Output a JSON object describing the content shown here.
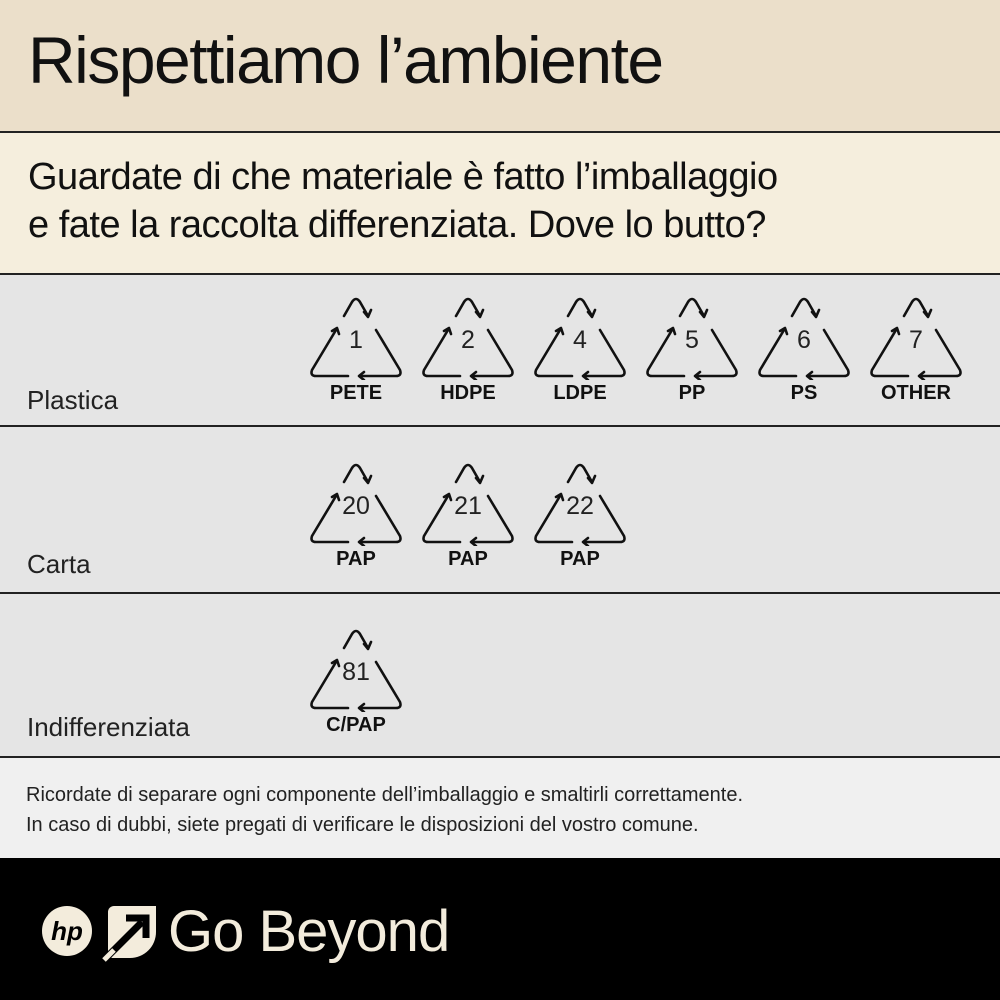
{
  "title": "Rispettiamo l’ambiente",
  "subtitle": {
    "line1": "Guardate di che materiale è fatto l’imballaggio",
    "line2": "e fate la raccolta differenziata.  Dove lo butto?"
  },
  "categories": [
    {
      "label": "Plastica",
      "symbols": [
        {
          "number": "1",
          "code": "PETE"
        },
        {
          "number": "2",
          "code": "HDPE"
        },
        {
          "number": "4",
          "code": "LDPE"
        },
        {
          "number": "5",
          "code": "PP"
        },
        {
          "number": "6",
          "code": "PS"
        },
        {
          "number": "7",
          "code": "OTHER"
        }
      ]
    },
    {
      "label": "Carta",
      "symbols": [
        {
          "number": "20",
          "code": "PAP"
        },
        {
          "number": "21",
          "code": "PAP"
        },
        {
          "number": "22",
          "code": "PAP"
        }
      ]
    },
    {
      "label": "Indifferenziata",
      "symbols": [
        {
          "number": "81",
          "code": "C/PAP"
        }
      ]
    }
  ],
  "note": {
    "line1": "Ricordate di separare ogni componente dell’imballaggio e smaltirli correttamente.",
    "line2": "In caso di dubbi, siete pregati di verificare le disposizioni del vostro comune."
  },
  "footer": {
    "logo": "hp",
    "tagline": "Go Beyond"
  },
  "colors": {
    "header": "#ebdfca",
    "subheader": "#f5eedd",
    "rows": "#e5e5e5",
    "footer": "#000000",
    "footer_text": "#f3ecdc"
  },
  "icons": {
    "symbol": "recycle-triangle-icon"
  }
}
